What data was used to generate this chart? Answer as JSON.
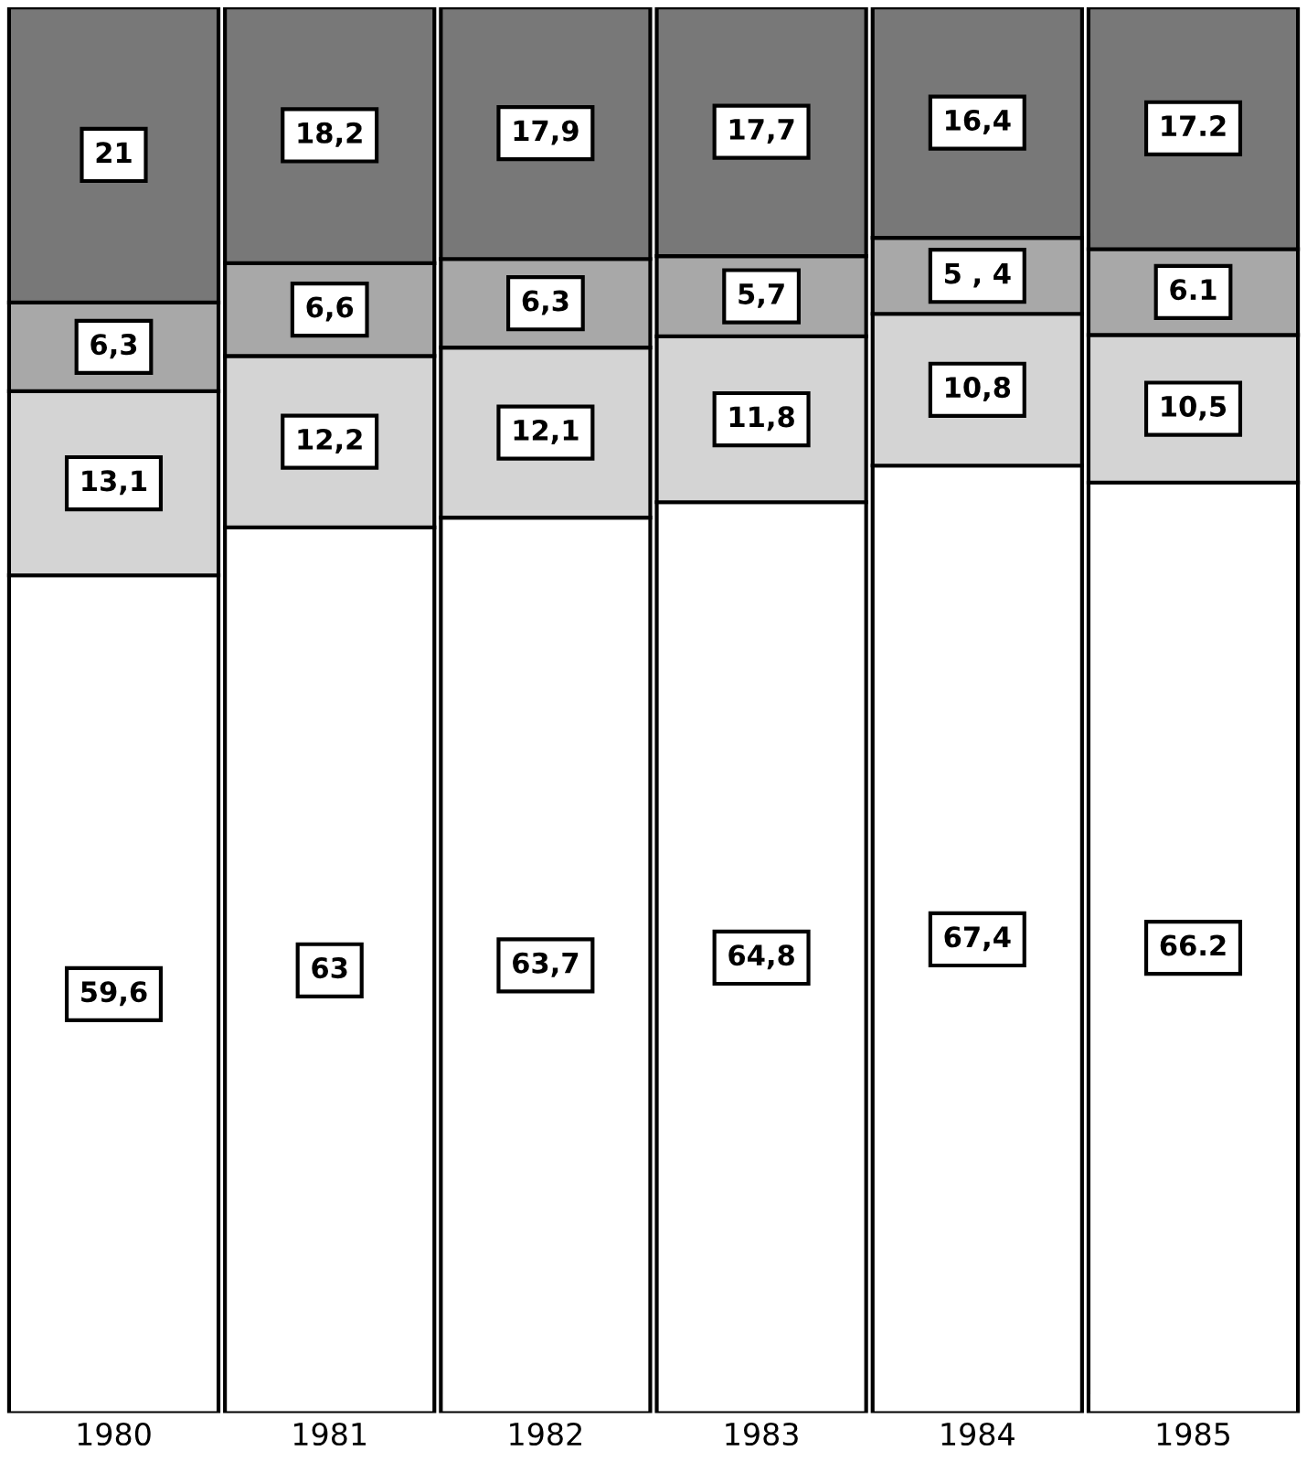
{
  "chart_data": {
    "type": "bar",
    "stacked": true,
    "categories": [
      "1980",
      "1981",
      "1982",
      "1983",
      "1984",
      "1985"
    ],
    "series": [
      {
        "color": "#ffffff",
        "values": [
          59.6,
          63,
          63.7,
          64.8,
          67.4,
          66.2
        ],
        "value_labels": [
          "59,6",
          "63",
          "63,7",
          "64,8",
          "67,4",
          "66.2"
        ]
      },
      {
        "color": "#d4d4d4",
        "values": [
          13.1,
          12.2,
          12.1,
          11.8,
          10.8,
          10.5
        ],
        "value_labels": [
          "13,1",
          "12,2",
          "12,1",
          "11,8",
          "10,8",
          "10,5"
        ]
      },
      {
        "color": "#a8a8a8",
        "values": [
          6.3,
          6.6,
          6.3,
          5.7,
          5.4,
          6.1
        ],
        "value_labels": [
          "6,3",
          "6,6",
          "6,3",
          "5,7",
          "5 , 4",
          "6.1"
        ]
      },
      {
        "color": "#787878",
        "values": [
          21,
          18.2,
          17.9,
          17.7,
          16.4,
          17.2
        ],
        "value_labels": [
          "21",
          "18,2",
          "17,9",
          "17,7",
          "16,4",
          "17.2"
        ]
      }
    ],
    "tick_labels": "x",
    "grid": false,
    "legend": false
  }
}
